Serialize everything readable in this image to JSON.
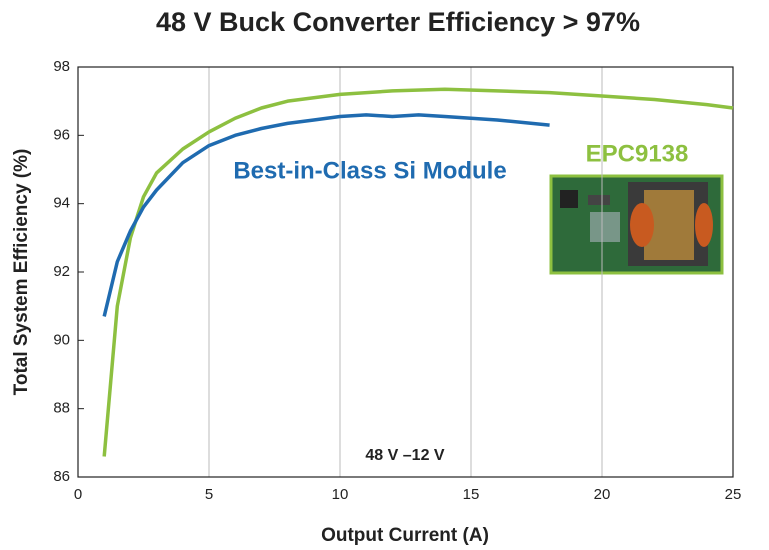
{
  "chart_data": {
    "type": "line",
    "title": "48 V Buck Converter Efficiency > 97%",
    "x_label": "Output Current (A)",
    "y_label": "Total System Efficiency (%)",
    "xlim": [
      0,
      25
    ],
    "xticks": [
      0,
      5,
      10,
      15,
      20,
      25
    ],
    "ylim": [
      86,
      98
    ],
    "yticks": [
      86,
      88,
      90,
      92,
      94,
      96,
      98
    ],
    "grid": "x",
    "series": [
      {
        "name": "EPC9138",
        "color": "#8dc040",
        "x": [
          1,
          1.5,
          2,
          2.5,
          3,
          4,
          5,
          6,
          7,
          8,
          10,
          12,
          14,
          16,
          18,
          20,
          22,
          24,
          25
        ],
        "values": [
          86.6,
          91.0,
          93.0,
          94.2,
          94.9,
          95.6,
          96.1,
          96.5,
          96.8,
          97.0,
          97.2,
          97.3,
          97.35,
          97.3,
          97.25,
          97.15,
          97.05,
          96.9,
          96.8
        ]
      },
      {
        "name": "Best-in-Class Si Module",
        "color": "#1f6bb0",
        "x": [
          1,
          1.5,
          2,
          2.5,
          3,
          4,
          5,
          6,
          7,
          8,
          9,
          10,
          11,
          12,
          13,
          14,
          16,
          18
        ],
        "values": [
          90.7,
          92.3,
          93.2,
          93.9,
          94.4,
          95.2,
          95.7,
          96.0,
          96.2,
          96.35,
          96.45,
          96.55,
          96.6,
          96.55,
          96.6,
          96.55,
          96.45,
          96.3
        ]
      }
    ],
    "annotations": [
      "48 V –12 V"
    ]
  }
}
